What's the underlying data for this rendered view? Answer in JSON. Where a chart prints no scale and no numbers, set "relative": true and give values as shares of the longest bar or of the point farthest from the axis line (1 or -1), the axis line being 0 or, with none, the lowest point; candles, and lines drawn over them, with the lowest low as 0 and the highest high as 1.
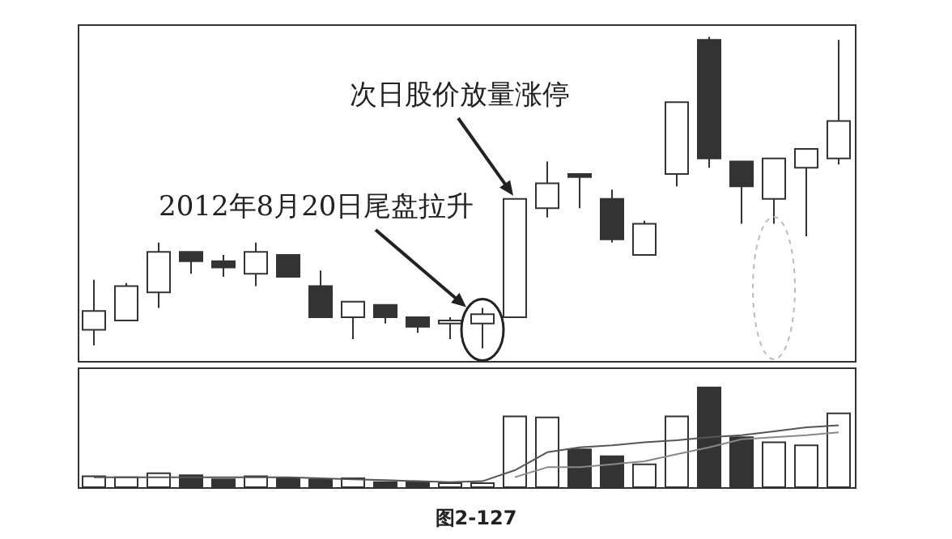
{
  "chart_data": [
    {
      "type": "candlestick",
      "relative": true,
      "categories": [
        null,
        null,
        null,
        null,
        null,
        null,
        null,
        null,
        null,
        null,
        null,
        null,
        null,
        null,
        null,
        null,
        null,
        null,
        null,
        null,
        null,
        null,
        null,
        null
      ],
      "ohlc": [
        [
          0.06,
          0.22,
          0.01,
          0.12
        ],
        [
          0.09,
          0.21,
          0.09,
          0.2
        ],
        [
          0.18,
          0.34,
          0.13,
          0.31
        ],
        [
          0.31,
          0.31,
          0.24,
          0.28
        ],
        [
          0.28,
          0.3,
          0.23,
          0.26
        ],
        [
          0.24,
          0.34,
          0.2,
          0.31
        ],
        [
          0.3,
          0.3,
          0.23,
          0.23
        ],
        [
          0.2,
          0.25,
          0.1,
          0.1
        ],
        [
          0.1,
          0.15,
          0.03,
          0.15
        ],
        [
          0.14,
          0.14,
          0.08,
          0.1
        ],
        [
          0.1,
          0.1,
          0.05,
          0.07
        ],
        [
          0.08,
          0.1,
          0.03,
          0.09
        ],
        [
          0.08,
          0.13,
          0,
          0.11
        ],
        [
          0.1,
          0.48,
          0.1,
          0.48
        ],
        [
          0.45,
          0.6,
          0.42,
          0.53
        ],
        [
          0.56,
          0.56,
          0.45,
          0.55
        ],
        [
          0.48,
          0.51,
          0.34,
          0.35
        ],
        [
          0.3,
          0.41,
          0.3,
          0.4
        ],
        [
          0.56,
          0.79,
          0.52,
          0.79
        ],
        [
          0.99,
          1,
          0.58,
          0.61
        ],
        [
          0.6,
          0.6,
          0.4,
          0.52
        ],
        [
          0.48,
          0.61,
          0.4,
          0.61
        ],
        [
          0.58,
          0.64,
          0.36,
          0.64
        ],
        [
          0.61,
          0.99,
          0.59,
          0.73
        ]
      ],
      "colors": [
        "#ffffff",
        "#ffffff",
        "#ffffff",
        "#333333",
        "#333333",
        "#ffffff",
        "#333333",
        "#333333",
        "#ffffff",
        "#333333",
        "#333333",
        "#ffffff",
        "#ffffff",
        "#ffffff",
        "#ffffff",
        "#333333",
        "#333333",
        "#ffffff",
        "#ffffff",
        "#333333",
        "#333333",
        "#ffffff",
        "#ffffff",
        "#ffffff"
      ],
      "annotations": [
        "次日股价放量涨停",
        "2012年8月20日尾盘拉升"
      ]
    },
    {
      "type": "bar",
      "relative": true,
      "categories": [
        null,
        null,
        null,
        null,
        null,
        null,
        null,
        null,
        null,
        null,
        null,
        null,
        null,
        null,
        null,
        null,
        null,
        null,
        null,
        null,
        null,
        null,
        null,
        null
      ],
      "series": [
        {
          "type": "bar",
          "values": [
            0.11,
            0.1,
            0.14,
            0.12,
            0.08,
            0.11,
            0.09,
            0.08,
            0.09,
            0.05,
            0.05,
            0.04,
            0.04,
            0.71,
            0.7,
            0.38,
            0.31,
            0.23,
            0.71,
            1,
            0.5,
            0.45,
            0.42,
            0.74
          ],
          "colors": [
            "#ffffff",
            "#ffffff",
            "#ffffff",
            "#333333",
            "#333333",
            "#ffffff",
            "#333333",
            "#333333",
            "#ffffff",
            "#333333",
            "#333333",
            "#ffffff",
            "#ffffff",
            "#ffffff",
            "#ffffff",
            "#333333",
            "#333333",
            "#ffffff",
            "#ffffff",
            "#333333",
            "#333333",
            "#ffffff",
            "#ffffff",
            "#ffffff"
          ]
        },
        {
          "type": "line",
          "color": "#555555",
          "values": [
            0.1,
            0.1,
            0.1,
            0.1,
            0.1,
            0.1,
            0.1,
            0.09,
            0.08,
            0.07,
            0.06,
            0.05,
            0.06,
            0.17,
            0.35,
            0.4,
            0.42,
            0.45,
            0.47,
            0.5,
            0.52,
            0.56,
            0.6,
            0.62
          ]
        },
        {
          "type": "line",
          "color": "#888888",
          "values": [
            null,
            null,
            null,
            null,
            null,
            null,
            null,
            null,
            null,
            null,
            null,
            null,
            null,
            0.1,
            0.2,
            0.2,
            0.23,
            0.26,
            0.33,
            0.4,
            0.48,
            0.5,
            0.52,
            0.55
          ]
        }
      ],
      "annotations": [
        "图2-127"
      ]
    }
  ]
}
